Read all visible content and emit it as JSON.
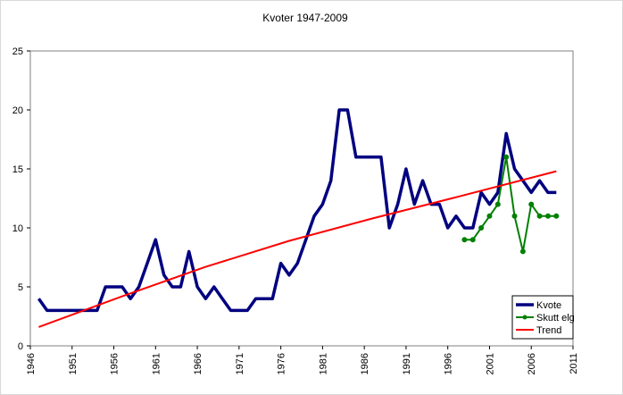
{
  "chart_data": {
    "type": "line",
    "title": "Kvoter 1947-2009",
    "xlabel": "",
    "ylabel": "",
    "xlim": [
      1946,
      2011
    ],
    "ylim": [
      0,
      25
    ],
    "x_ticks": [
      "1946",
      "1951",
      "1956",
      "1961",
      "1966",
      "1971",
      "1976",
      "1981",
      "1986",
      "1991",
      "1996",
      "2001",
      "2006",
      "2011"
    ],
    "y_ticks": [
      "0",
      "5",
      "10",
      "15",
      "20",
      "25"
    ],
    "grid": "none",
    "legend_position": "bottom-right",
    "series": [
      {
        "name": "Kvote",
        "color": "#000080",
        "x": [
          1947,
          1948,
          1949,
          1950,
          1951,
          1952,
          1953,
          1954,
          1955,
          1956,
          1957,
          1958,
          1959,
          1960,
          1961,
          1962,
          1963,
          1964,
          1965,
          1966,
          1967,
          1968,
          1969,
          1970,
          1971,
          1972,
          1973,
          1974,
          1975,
          1976,
          1977,
          1978,
          1979,
          1980,
          1981,
          1982,
          1983,
          1984,
          1985,
          1986,
          1987,
          1988,
          1989,
          1990,
          1991,
          1992,
          1993,
          1994,
          1995,
          1996,
          1997,
          1998,
          1999,
          2000,
          2001,
          2002,
          2003,
          2004,
          2005,
          2006,
          2007,
          2008,
          2009
        ],
        "y": [
          4,
          3,
          3,
          3,
          3,
          3,
          3,
          3,
          5,
          5,
          5,
          4,
          5,
          7,
          9,
          6,
          5,
          5,
          8,
          5,
          4,
          5,
          4,
          3,
          3,
          3,
          4,
          4,
          4,
          7,
          6,
          7,
          9,
          11,
          12,
          14,
          20,
          20,
          16,
          16,
          16,
          16,
          10,
          12,
          15,
          12,
          14,
          12,
          12,
          10,
          11,
          10,
          10,
          13,
          12,
          13,
          18,
          15,
          14,
          13,
          14,
          13,
          13
        ]
      },
      {
        "name": "Skutt elg",
        "color": "#008000",
        "x": [
          1998,
          1999,
          2000,
          2001,
          2002,
          2003,
          2004,
          2005,
          2006,
          2007,
          2008,
          2009
        ],
        "y": [
          9,
          9,
          10,
          11,
          12,
          16,
          11,
          8,
          12,
          11,
          11,
          11
        ]
      },
      {
        "name": "Trend",
        "color": "#ff0000",
        "x": [
          1947,
          1957,
          1967,
          1977,
          1987,
          1997,
          2009
        ],
        "y": [
          1.6,
          4.2,
          6.7,
          8.9,
          10.8,
          12.6,
          14.8
        ]
      }
    ]
  }
}
